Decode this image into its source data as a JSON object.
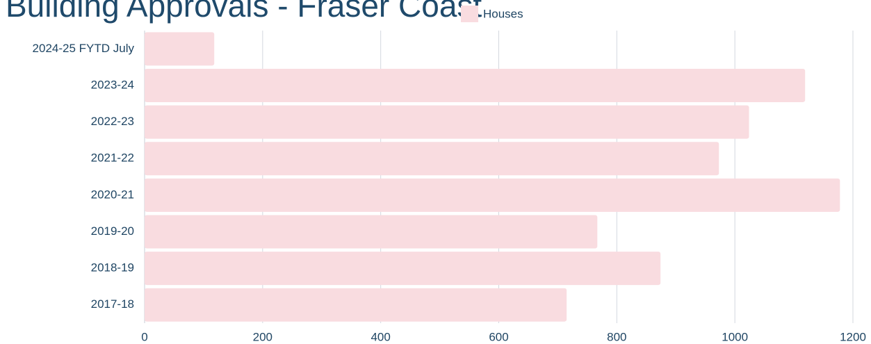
{
  "chart_data": {
    "type": "bar",
    "orientation": "horizontal",
    "title": "Building Approvals - Fraser Coast",
    "categories": [
      "2024-25 FYTD July",
      "2023-24",
      "2022-23",
      "2021-22",
      "2020-21",
      "2019-20",
      "2018-19",
      "2017-18"
    ],
    "series": [
      {
        "name": "Houses",
        "color": "#f9dce0",
        "values": [
          118,
          1119,
          1024,
          973,
          1178,
          767,
          874,
          715
        ]
      }
    ],
    "xlim": [
      0,
      1200
    ],
    "xticks": [
      0,
      200,
      400,
      600,
      800,
      1000,
      1200
    ],
    "grid": true,
    "legend": "top"
  }
}
